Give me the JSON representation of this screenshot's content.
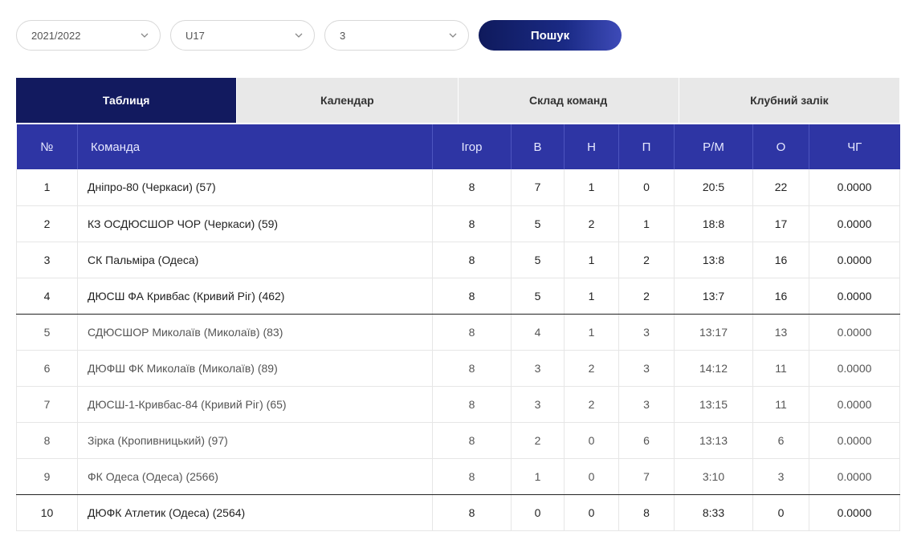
{
  "filters": {
    "season": "2021/2022",
    "age": "U17",
    "group": "3",
    "search_label": "Пошук"
  },
  "tabs": [
    {
      "label": "Таблиця",
      "active": true
    },
    {
      "label": "Календар",
      "active": false
    },
    {
      "label": "Склад команд",
      "active": false
    },
    {
      "label": "Клубний залік",
      "active": false
    }
  ],
  "table": {
    "headers": {
      "num": "№",
      "team": "Команда",
      "games": "Ігор",
      "wins": "В",
      "draws": "Н",
      "losses": "П",
      "goals": "Р/М",
      "points": "О",
      "cg": "ЧГ"
    },
    "rows": [
      {
        "num": "1",
        "team": "Дніпро-80 (Черкаси) (57)",
        "games": "8",
        "wins": "7",
        "draws": "1",
        "losses": "0",
        "goals": "20:5",
        "points": "22",
        "cg": "0.0000"
      },
      {
        "num": "2",
        "team": "КЗ ОСДЮСШОР ЧОР (Черкаси) (59)",
        "games": "8",
        "wins": "5",
        "draws": "2",
        "losses": "1",
        "goals": "18:8",
        "points": "17",
        "cg": "0.0000"
      },
      {
        "num": "3",
        "team": "СК Пальміра (Одеса)",
        "games": "8",
        "wins": "5",
        "draws": "1",
        "losses": "2",
        "goals": "13:8",
        "points": "16",
        "cg": "0.0000"
      },
      {
        "num": "4",
        "team": "ДЮСШ ФА Кривбас (Кривий Ріг) (462)",
        "games": "8",
        "wins": "5",
        "draws": "1",
        "losses": "2",
        "goals": "13:7",
        "points": "16",
        "cg": "0.0000"
      },
      {
        "num": "5",
        "team": "СДЮСШОР Миколаїв (Миколаїв) (83)",
        "games": "8",
        "wins": "4",
        "draws": "1",
        "losses": "3",
        "goals": "13:17",
        "points": "13",
        "cg": "0.0000"
      },
      {
        "num": "6",
        "team": "ДЮФШ ФК Миколаїв (Миколаїв) (89)",
        "games": "8",
        "wins": "3",
        "draws": "2",
        "losses": "3",
        "goals": "14:12",
        "points": "11",
        "cg": "0.0000"
      },
      {
        "num": "7",
        "team": "ДЮСШ-1-Кривбас-84 (Кривий Ріг) (65)",
        "games": "8",
        "wins": "3",
        "draws": "2",
        "losses": "3",
        "goals": "13:15",
        "points": "11",
        "cg": "0.0000"
      },
      {
        "num": "8",
        "team": "Зірка (Кропивницький) (97)",
        "games": "8",
        "wins": "2",
        "draws": "0",
        "losses": "6",
        "goals": "13:13",
        "points": "6",
        "cg": "0.0000"
      },
      {
        "num": "9",
        "team": "ФК Одеса (Одеса) (2566)",
        "games": "8",
        "wins": "1",
        "draws": "0",
        "losses": "7",
        "goals": "3:10",
        "points": "3",
        "cg": "0.0000"
      },
      {
        "num": "10",
        "team": "ДЮФК Атлетик (Одеса) (2564)",
        "games": "8",
        "wins": "0",
        "draws": "0",
        "losses": "8",
        "goals": "8:33",
        "points": "0",
        "cg": "0.0000"
      }
    ]
  }
}
